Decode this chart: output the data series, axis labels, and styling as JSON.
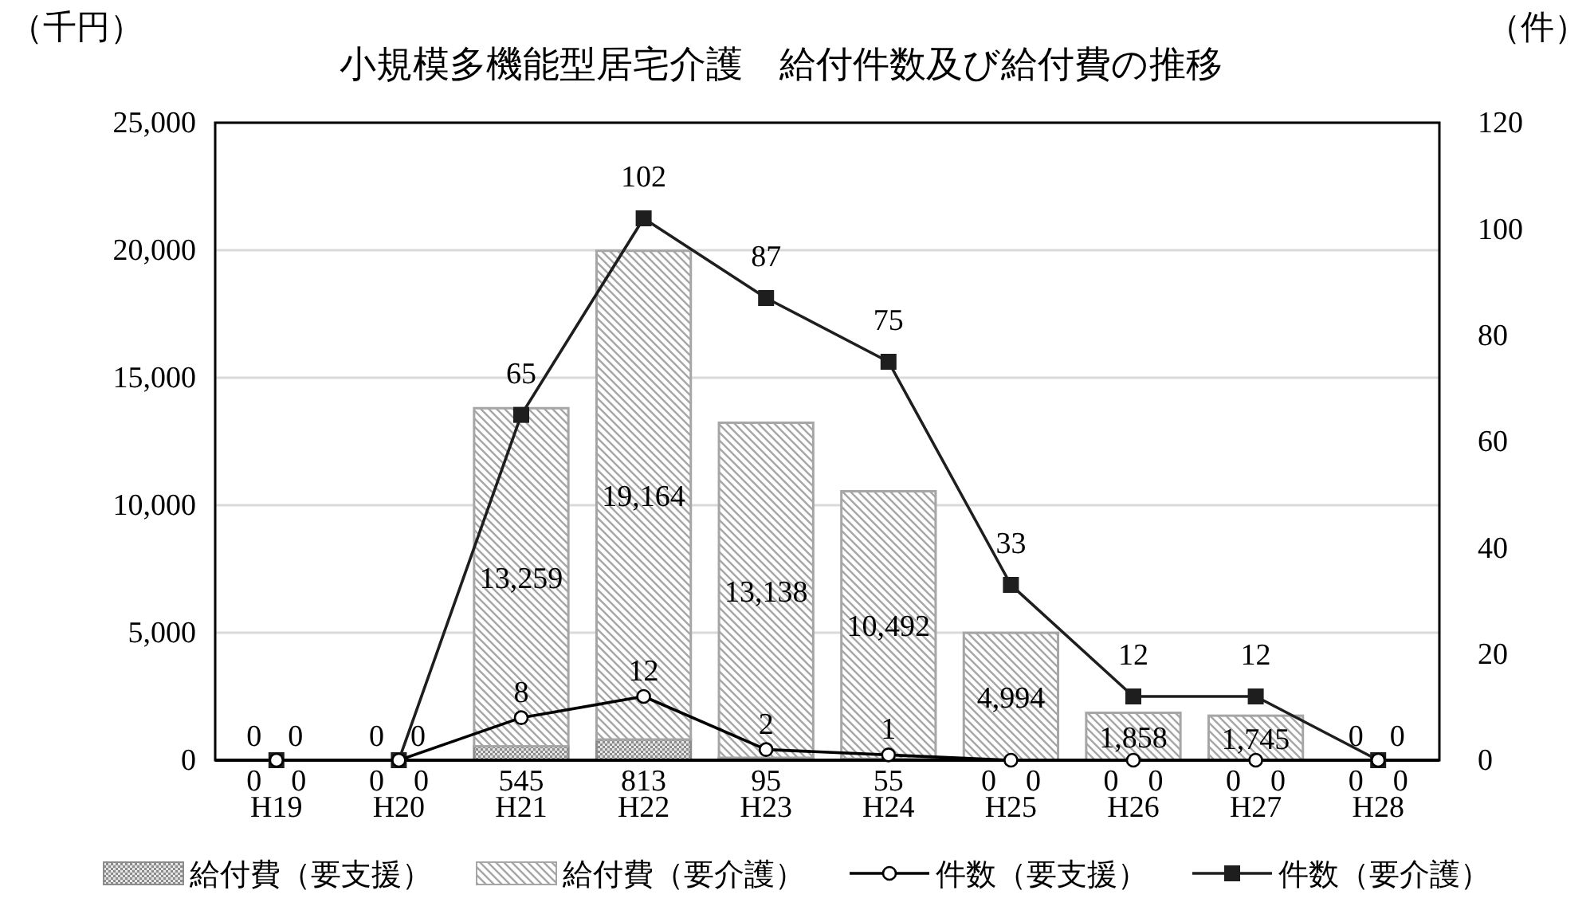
{
  "chart_data": {
    "type": "bar",
    "stacked": true,
    "title": "小規模多機能型居宅介護　給付件数及び給付費の推移",
    "ylabel": "（千円）",
    "y2label": "（件）",
    "categories": [
      "H19",
      "H20",
      "H21",
      "H22",
      "H23",
      "H24",
      "H25",
      "H26",
      "H27",
      "H28"
    ],
    "series": [
      {
        "name": "給付費（要支援）",
        "type": "bar",
        "color": "#8c8c8c",
        "values": [
          0,
          0,
          545,
          813,
          95,
          55,
          0,
          0,
          0,
          0
        ]
      },
      {
        "name": "給付費（要介護）",
        "type": "bar",
        "color": "#a6a6a6",
        "values": [
          0,
          0,
          13259,
          19164,
          13138,
          10492,
          4994,
          1858,
          1745,
          0
        ],
        "value_labels": [
          "0",
          "0",
          "13,259",
          "19,164",
          "13,138",
          "10,492",
          "4,994",
          "1,858",
          "1,745",
          "0"
        ]
      },
      {
        "name": "件数（要支援）",
        "type": "line",
        "axis": "y2",
        "color": "#000000",
        "marker": "circle",
        "values": [
          0,
          0,
          8,
          12,
          2,
          1,
          0,
          0,
          0,
          0
        ]
      },
      {
        "name": "件数（要介護）",
        "type": "line",
        "axis": "y2",
        "color": "#1e1e1e",
        "marker": "square",
        "values": [
          0,
          0,
          65,
          102,
          87,
          75,
          33,
          12,
          12,
          0
        ]
      }
    ],
    "ylim": [
      0,
      25000
    ],
    "yticks": [
      0,
      {
        "value": 5000,
        "label": "5,000"
      },
      {
        "value": 10000,
        "label": "10,000"
      },
      {
        "value": 15000,
        "label": "15,000"
      },
      {
        "value": 20000,
        "label": "20,000"
      },
      {
        "value": 25000,
        "label": "25,000"
      }
    ],
    "y2lim": [
      0,
      120
    ],
    "y2ticks": [
      0,
      20,
      40,
      60,
      80,
      100,
      120
    ],
    "grid": "y",
    "legend": "bottom",
    "data_labels": true
  }
}
